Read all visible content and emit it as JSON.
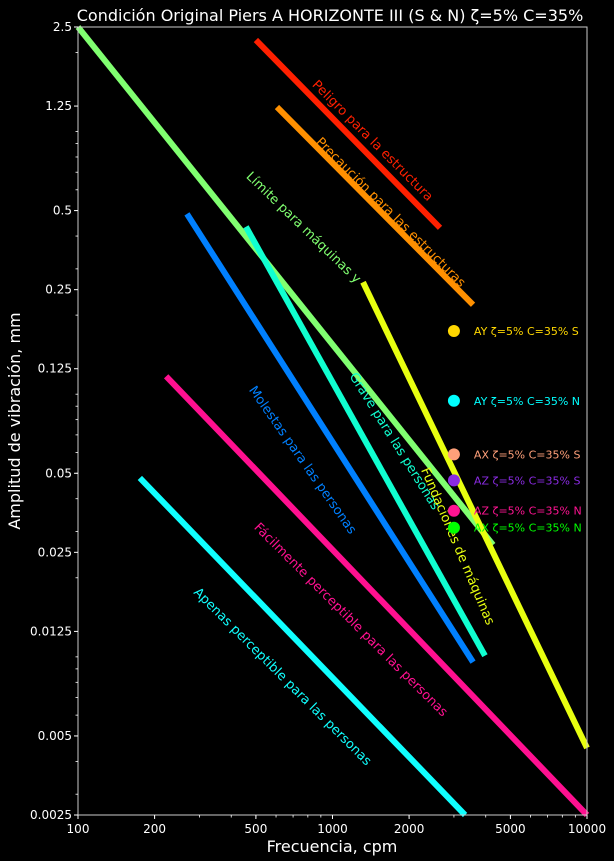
{
  "chart_data": {
    "type": "line",
    "title": "Condición Original Piers A HORIZONTE III (S & N) ζ=5% C=35%",
    "xlabel": "Frecuencia, cpm",
    "ylabel": "Amplitud de vibración, mm",
    "xscale": "log",
    "yscale": "log",
    "xlim": [
      100,
      10000
    ],
    "ylim": [
      0.0025,
      2.5
    ],
    "grid": false,
    "background": "#000000",
    "xticks": [
      100,
      200,
      500,
      1000,
      2000,
      5000,
      10000
    ],
    "xtick_labels": [
      "100",
      "200",
      "500",
      "1000",
      "2000",
      "5000",
      "10000"
    ],
    "yticks": [
      0.0025,
      0.005,
      0.0125,
      0.025,
      0.05,
      0.125,
      0.25,
      0.5,
      1.25,
      2.5
    ],
    "ytick_labels": [
      "0.0025",
      "0.005",
      "0.0125",
      "0.025",
      "0.05",
      "0.125",
      "0.25",
      "0.5",
      "1.25",
      "2.5"
    ],
    "series": [
      {
        "name": "Peligro para la estructura",
        "color": "#ff2000",
        "x": [
          500,
          2645
        ],
        "y": [
          2.23,
          0.43
        ],
        "label_at": [
          1400,
          0.9
        ],
        "angle": 45
      },
      {
        "name": "Precaución para las estructuras",
        "color": "#ff9000",
        "x": [
          605,
          3566
        ],
        "y": [
          1.24,
          0.219
        ],
        "label_at": [
          1650,
          0.48
        ],
        "angle": 45
      },
      {
        "name": "Límite para máquinas y",
        "color": "#80ff70",
        "x": [
          100,
          4275
        ],
        "y": [
          2.5,
          0.0267
        ],
        "label_at": [
          750,
          0.42
        ],
        "angle": 44
      },
      {
        "name": "Molestas para las personas",
        "color": "#0080ff",
        "x": [
          268,
          3566
        ],
        "y": [
          0.486,
          0.00955
        ],
        "label_at": [
          740,
          0.055
        ],
        "angle": 55
      },
      {
        "name": "Grave para las personas",
        "color": "#10ffd0",
        "x": [
          457,
          3973
        ],
        "y": [
          0.434,
          0.0101
        ],
        "label_at": [
          1700,
          0.065
        ],
        "angle": 58
      },
      {
        "name": "Fundaciones de máquinas",
        "color": "#e8ff10",
        "x": [
          1318,
          10000
        ],
        "y": [
          0.267,
          0.0045
        ],
        "label_at": [
          3000,
          0.026
        ],
        "angle": 67
      },
      {
        "name": "Fácilmente perceptible para las personas",
        "color": "#ff1090",
        "x": [
          222,
          10000
        ],
        "y": [
          0.117,
          0.0025
        ],
        "label_at": [
          1150,
          0.0135
        ],
        "angle": 45
      },
      {
        "name": "Apenas perceptible para las personas",
        "color": "#10ffff",
        "x": [
          175,
          3318
        ],
        "y": [
          0.048,
          0.0025
        ],
        "label_at": [
          620,
          0.0082
        ],
        "angle": 45
      }
    ],
    "legend": [
      {
        "label": "AY ζ=5% C=35% S",
        "color": "#ffd700",
        "x": 3000,
        "y": 0.174
      },
      {
        "label": "AY ζ=5% C=35% N",
        "color": "#00ffff",
        "x": 3000,
        "y": 0.0944
      },
      {
        "label": "AX ζ=5% C=35% S",
        "color": "#ffa07a",
        "x": 3000,
        "y": 0.059
      },
      {
        "label": "AZ ζ=5% C=35% S",
        "color": "#8a2be2",
        "x": 3000,
        "y": 0.047
      },
      {
        "label": "AZ ζ=5% C=35% N",
        "color": "#ff1493",
        "x": 3000,
        "y": 0.036
      },
      {
        "label": "AX ζ=5% C=35% N",
        "color": "#00ff00",
        "x": 3000,
        "y": 0.0345
      }
    ]
  }
}
